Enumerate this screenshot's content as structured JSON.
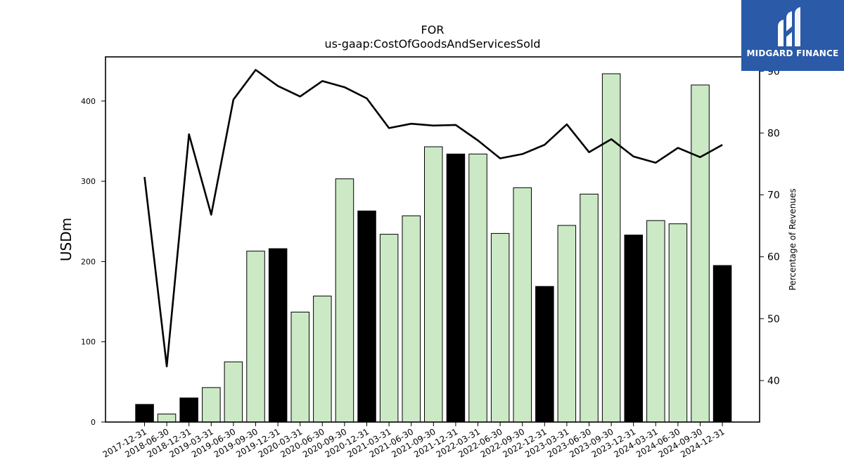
{
  "logo": {
    "text": "MIDGARD FINANCE"
  },
  "chart_data": {
    "type": "bar",
    "title": "FOR",
    "subtitle": "us-gaap:CostOfGoodsAndServicesSold",
    "ylabel": "USDm",
    "y2label": "Percentage of Revenues",
    "ylim": [
      0,
      455
    ],
    "y2lim": [
      33.3,
      92.3
    ],
    "yticks": [
      0,
      100,
      200,
      300,
      400
    ],
    "y2ticks": [
      40,
      50,
      60,
      70,
      80,
      90
    ],
    "categories": [
      "2017-12-31",
      "2018-06-30",
      "2018-12-31",
      "2019-03-31",
      "2019-06-30",
      "2019-09-30",
      "2019-12-31",
      "2020-03-31",
      "2020-06-30",
      "2020-09-30",
      "2020-12-31",
      "2021-03-31",
      "2021-06-30",
      "2021-09-30",
      "2021-12-31",
      "2022-03-31",
      "2022-06-30",
      "2022-09-30",
      "2022-12-31",
      "2023-03-31",
      "2023-06-30",
      "2023-09-30",
      "2023-12-31",
      "2024-03-31",
      "2024-06-30",
      "2024-09-30",
      "2024-12-31"
    ],
    "series": [
      {
        "type": "bar",
        "values": [
          22,
          10,
          30,
          43,
          75,
          213,
          216,
          137,
          157,
          303,
          263,
          234,
          257,
          343,
          334,
          334,
          235,
          292,
          169,
          245,
          284,
          434,
          233,
          251,
          247,
          420,
          195
        ]
      },
      {
        "type": "line",
        "axis": "right",
        "values": [
          72.9,
          42.3,
          79.8,
          66.8,
          85.4,
          90.2,
          87.6,
          85.9,
          88.4,
          87.4,
          85.6,
          80.8,
          81.5,
          81.2,
          81.3,
          78.8,
          75.9,
          76.6,
          78.1,
          81.4,
          76.9,
          79.0,
          76.2,
          75.2,
          77.6,
          76.1,
          78.1
        ]
      }
    ],
    "bar_fill": [
      "black",
      "green",
      "black",
      "green",
      "green",
      "green",
      "black",
      "green",
      "green",
      "green",
      "black",
      "green",
      "green",
      "green",
      "black",
      "green",
      "green",
      "green",
      "black",
      "green",
      "green",
      "green",
      "black",
      "green",
      "green",
      "green",
      "black"
    ],
    "colors": {
      "black": "#000000",
      "green": "#cce9c6",
      "line": "#000000",
      "logo": "#2a5aa8"
    }
  }
}
